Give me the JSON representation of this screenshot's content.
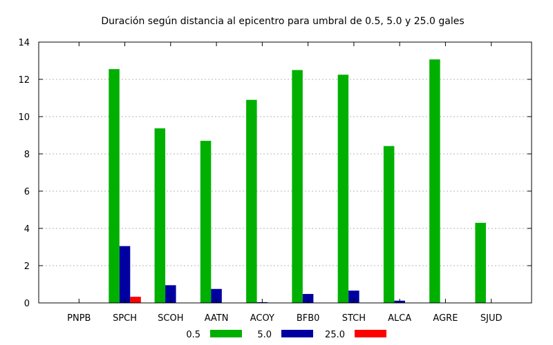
{
  "chart_data": {
    "type": "bar",
    "title": "Duración según distancia al epicentro para umbral de 0.5, 5.0 y 25.0 gales",
    "xlabel": "",
    "ylabel": "",
    "ylim": [
      0,
      14
    ],
    "yticks": [
      0,
      2,
      4,
      6,
      8,
      10,
      12,
      14
    ],
    "grid": true,
    "legend_position": "bottom",
    "categories": [
      "PNPB",
      "SPCH",
      "SCOH",
      "AATN",
      "ACOY",
      "BFB0",
      "STCH",
      "ALCA",
      "AGRE",
      "SJUD"
    ],
    "series": [
      {
        "name": "0.5",
        "color": "#00b000",
        "values": [
          0,
          12.55,
          9.37,
          8.7,
          10.9,
          12.5,
          12.25,
          8.42,
          13.07,
          4.3
        ]
      },
      {
        "name": "5.0",
        "color": "#0000a0",
        "values": [
          0,
          3.05,
          0.95,
          0.75,
          0.04,
          0.48,
          0.66,
          0.12,
          0,
          0
        ]
      },
      {
        "name": "25.0",
        "color": "#ff0000",
        "values": [
          0,
          0.33,
          0,
          0,
          0,
          0,
          0,
          0,
          0,
          0
        ]
      }
    ]
  }
}
